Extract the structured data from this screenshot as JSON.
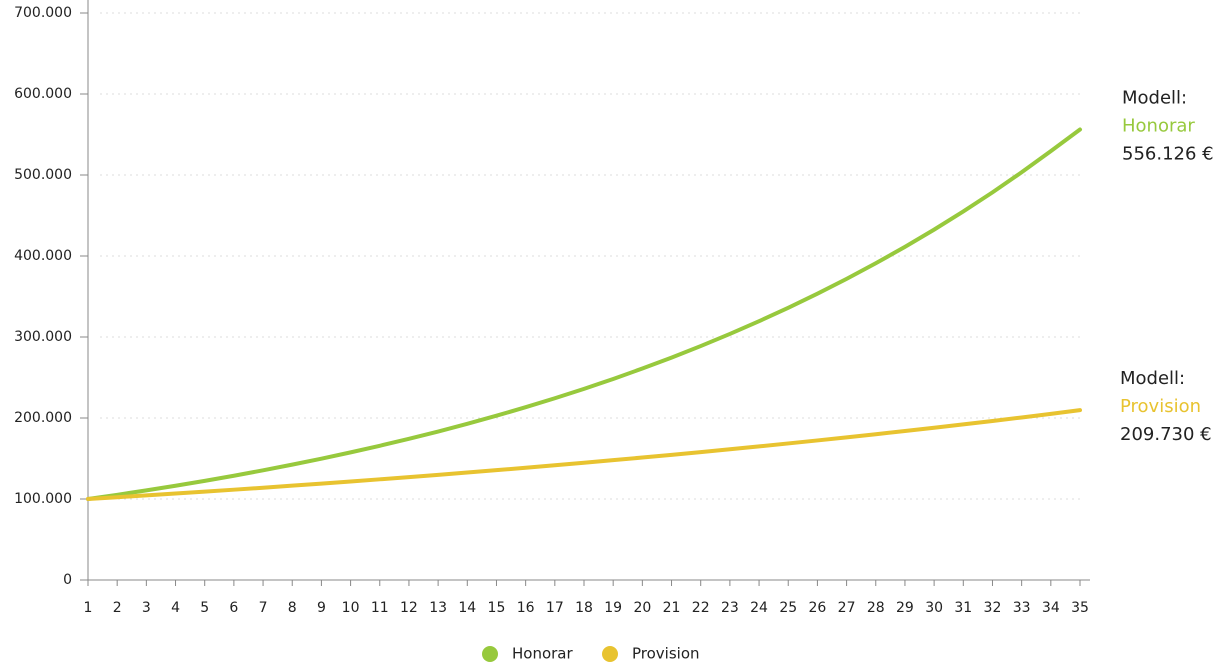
{
  "chart_data": {
    "type": "line",
    "categories": [
      "1",
      "2",
      "3",
      "4",
      "5",
      "6",
      "7",
      "8",
      "9",
      "10",
      "11",
      "12",
      "13",
      "14",
      "15",
      "16",
      "17",
      "18",
      "19",
      "20",
      "21",
      "22",
      "23",
      "24",
      "25",
      "26",
      "27",
      "28",
      "29",
      "30",
      "31",
      "32",
      "33",
      "34",
      "35"
    ],
    "series": [
      {
        "name": "Honorar",
        "color": "#97c93d",
        "end_label": "556.126 €",
        "values": [
          100000,
          105180,
          110628,
          116359,
          122386,
          128726,
          135394,
          142407,
          149784,
          157543,
          165704,
          174287,
          183315,
          192811,
          202799,
          213304,
          224353,
          235975,
          248199,
          261055,
          274578,
          288801,
          303761,
          319496,
          336046,
          353453,
          371762,
          391020,
          411275,
          432579,
          454986,
          478555,
          503344,
          529418,
          556126
        ]
      },
      {
        "name": "Provision",
        "color": "#e8c330",
        "end_label": "209.730 €",
        "values": [
          100000,
          102200,
          104448,
          106746,
          109095,
          111495,
          113948,
          116454,
          119016,
          121635,
          124311,
          127046,
          129841,
          132697,
          135616,
          138600,
          141649,
          144766,
          147950,
          151205,
          154532,
          157932,
          161406,
          164957,
          168586,
          172295,
          176086,
          179960,
          183919,
          187965,
          192100,
          196326,
          200645,
          205060,
          209730
        ]
      }
    ],
    "end_label_prefix": "Modell:",
    "ylim": [
      0,
      700000
    ],
    "yticks": [
      0,
      {
        "value": 100000,
        "label": "100.000"
      },
      {
        "value": 200000,
        "label": "200.000"
      },
      {
        "value": 300000,
        "label": "300.000"
      },
      {
        "value": 400000,
        "label": "400.000"
      },
      {
        "value": 500000,
        "label": "500.000"
      },
      {
        "value": 600000,
        "label": "600.000"
      },
      {
        "value": 700000,
        "label": "700.000"
      }
    ],
    "grid": true,
    "legend": "bottom"
  }
}
